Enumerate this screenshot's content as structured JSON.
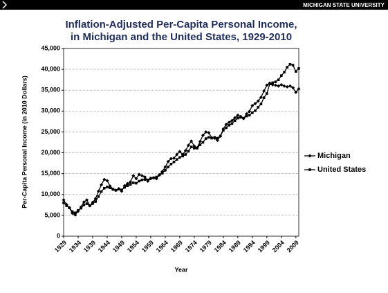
{
  "banner": "MICHIGAN STATE UNIVERSITY",
  "chart_data": {
    "type": "line",
    "title": [
      "Inflation-Adjusted Per-Capita Personal Income,",
      "in Michigan and the United States, 1929-2010"
    ],
    "ylabel": "Per-Capita Personal Income (in 2010 Dollars)",
    "xlabel": "Year",
    "x": [
      1929,
      1930,
      1931,
      1932,
      1933,
      1934,
      1935,
      1936,
      1937,
      1938,
      1939,
      1940,
      1941,
      1942,
      1943,
      1944,
      1945,
      1946,
      1947,
      1948,
      1949,
      1950,
      1951,
      1952,
      1953,
      1954,
      1955,
      1956,
      1957,
      1958,
      1959,
      1960,
      1961,
      1962,
      1963,
      1964,
      1965,
      1966,
      1967,
      1968,
      1969,
      1970,
      1971,
      1972,
      1973,
      1974,
      1975,
      1976,
      1977,
      1978,
      1979,
      1980,
      1981,
      1982,
      1983,
      1984,
      1985,
      1986,
      1987,
      1988,
      1989,
      1990,
      1991,
      1992,
      1993,
      1994,
      1995,
      1996,
      1997,
      1998,
      1999,
      2000,
      2001,
      2002,
      2003,
      2004,
      2005,
      2006,
      2007,
      2008,
      2009,
      2010
    ],
    "series": [
      {
        "name": "Michigan",
        "color": "#000000",
        "marker": "diamond",
        "values": [
          8700,
          7600,
          6800,
          5500,
          5100,
          6000,
          7000,
          8200,
          8700,
          7300,
          8100,
          9000,
          10800,
          12300,
          13600,
          13300,
          12000,
          11300,
          11000,
          11400,
          10800,
          12100,
          12600,
          13000,
          14500,
          13800,
          14800,
          14500,
          14200,
          13200,
          13800,
          14000,
          13800,
          14700,
          15500,
          16600,
          17900,
          18600,
          18700,
          19600,
          20300,
          19600,
          20500,
          21800,
          22800,
          21600,
          21200,
          22700,
          24200,
          25000,
          24800,
          23600,
          23500,
          23000,
          24000,
          25700,
          26800,
          27300,
          27700,
          28400,
          29000,
          28700,
          28200,
          29300,
          29900,
          31300,
          31800,
          32400,
          33300,
          34800,
          36200,
          36700,
          36300,
          36200,
          36000,
          36300,
          36000,
          35800,
          36000,
          35600,
          34500,
          35300
        ]
      },
      {
        "name": "United States",
        "color": "#000000",
        "marker": "square",
        "values": [
          8000,
          7300,
          6800,
          5900,
          5600,
          6200,
          6700,
          7500,
          7800,
          7300,
          7800,
          8300,
          9500,
          10700,
          11500,
          11800,
          11600,
          11200,
          11000,
          11300,
          11100,
          11700,
          12100,
          12400,
          12800,
          12700,
          13200,
          13500,
          13600,
          13500,
          13900,
          14000,
          14200,
          14700,
          15100,
          15800,
          16600,
          17300,
          17800,
          18400,
          18900,
          19200,
          19600,
          20400,
          21400,
          21100,
          21100,
          21900,
          22500,
          23400,
          23700,
          23500,
          23700,
          23500,
          24000,
          25400,
          26000,
          26600,
          27000,
          27700,
          28300,
          28500,
          28300,
          28800,
          29000,
          29600,
          30100,
          30900,
          31700,
          33200,
          34200,
          36500,
          36800,
          37000,
          37500,
          38500,
          39300,
          40500,
          41200,
          41000,
          39500,
          40200
        ]
      }
    ],
    "xlim": [
      1929,
      2010
    ],
    "xticks": [
      1929,
      1934,
      1939,
      1944,
      1949,
      1954,
      1959,
      1964,
      1969,
      1974,
      1979,
      1984,
      1989,
      1994,
      1999,
      2004,
      2009
    ],
    "ylim": [
      0,
      45000
    ],
    "yticks": [
      0,
      {
        "value": 5000,
        "label": "5,000"
      },
      {
        "value": 10000,
        "label": "10,000"
      },
      {
        "value": 15000,
        "label": "15,000"
      },
      {
        "value": 20000,
        "label": "20,000"
      },
      {
        "value": 25000,
        "label": "25,000"
      },
      {
        "value": 30000,
        "label": "30,000"
      },
      {
        "value": 35000,
        "label": "35,000"
      },
      {
        "value": 40000,
        "label": "40,000"
      },
      {
        "value": 45000,
        "label": "45,000"
      }
    ],
    "grid": true,
    "legend": "right"
  }
}
